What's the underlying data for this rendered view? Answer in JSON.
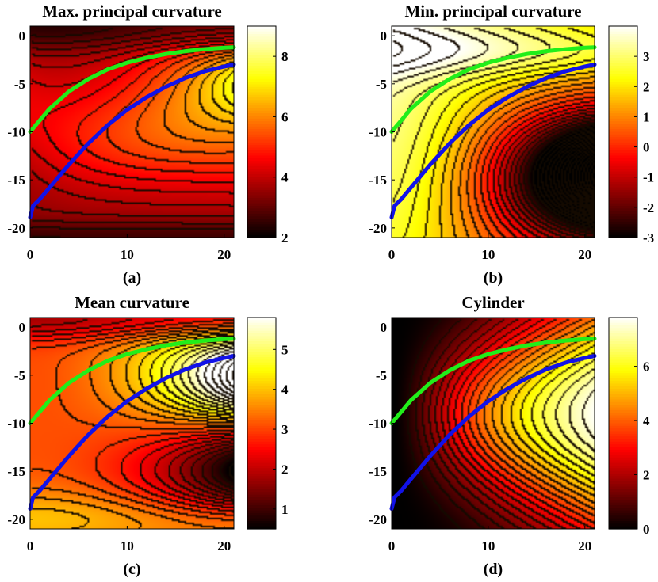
{
  "chart_data": [
    {
      "id": "a",
      "type": "heatmap",
      "title": "Max. principal curvature",
      "caption": "(a)",
      "field": "max",
      "colormap": "hot",
      "xlim": [
        0,
        21
      ],
      "ylim": [
        -21,
        1
      ],
      "xticks": [
        0,
        10,
        20
      ],
      "yticks": [
        0,
        -5,
        -10,
        -15,
        -20
      ],
      "clim": [
        2,
        9
      ],
      "cticks": [
        2,
        4,
        6,
        8
      ],
      "grid": false,
      "curves": [
        {
          "color": "#21ee1a",
          "x": [
            0,
            2,
            4,
            6,
            8,
            10,
            12,
            14,
            16,
            18,
            20,
            21
          ],
          "y": [
            -10,
            -7.6,
            -5.8,
            -4.5,
            -3.5,
            -2.8,
            -2.3,
            -1.9,
            -1.6,
            -1.4,
            -1.25,
            -1.2
          ]
        },
        {
          "color": "#1212e8",
          "x": [
            0,
            0.3,
            1,
            2,
            4,
            6,
            8,
            10,
            12,
            14,
            16,
            18,
            20,
            21
          ],
          "y": [
            -18.9,
            -17.7,
            -17.0,
            -15.8,
            -13.4,
            -11.2,
            -9.3,
            -7.7,
            -6.4,
            -5.3,
            -4.4,
            -3.7,
            -3.2,
            -3.0
          ]
        }
      ]
    },
    {
      "id": "b",
      "type": "heatmap",
      "title": "Min. principal curvature",
      "caption": "(b)",
      "field": "min",
      "colormap": "hot",
      "xlim": [
        0,
        21
      ],
      "ylim": [
        -21,
        1
      ],
      "xticks": [
        0,
        10,
        20
      ],
      "yticks": [
        0,
        -5,
        -10,
        -15,
        -20
      ],
      "clim": [
        -3,
        4
      ],
      "cticks": [
        -3,
        -2,
        -1,
        0,
        1,
        2,
        3
      ],
      "grid": false,
      "curves": [
        {
          "color": "#21ee1a",
          "x": [
            0,
            2,
            4,
            6,
            8,
            10,
            12,
            14,
            16,
            18,
            20,
            21
          ],
          "y": [
            -10,
            -7.6,
            -5.8,
            -4.5,
            -3.5,
            -2.8,
            -2.3,
            -1.9,
            -1.6,
            -1.4,
            -1.25,
            -1.2
          ]
        },
        {
          "color": "#1212e8",
          "x": [
            0,
            0.3,
            1,
            2,
            4,
            6,
            8,
            10,
            12,
            14,
            16,
            18,
            20,
            21
          ],
          "y": [
            -18.9,
            -17.7,
            -17.0,
            -15.8,
            -13.4,
            -11.2,
            -9.3,
            -7.7,
            -6.4,
            -5.3,
            -4.4,
            -3.7,
            -3.2,
            -3.0
          ]
        }
      ]
    },
    {
      "id": "c",
      "type": "heatmap",
      "title": "Mean curvature",
      "caption": "(c)",
      "field": "mean",
      "colormap": "hot",
      "xlim": [
        0,
        21
      ],
      "ylim": [
        -21,
        1
      ],
      "xticks": [
        0,
        10,
        20
      ],
      "yticks": [
        0,
        -5,
        -10,
        -15,
        -20
      ],
      "clim": [
        0.5,
        5.8
      ],
      "cticks": [
        1,
        2,
        3,
        4,
        5
      ],
      "grid": false,
      "curves": [
        {
          "color": "#21ee1a",
          "x": [
            0,
            2,
            4,
            6,
            8,
            10,
            12,
            14,
            16,
            18,
            20,
            21
          ],
          "y": [
            -10,
            -7.6,
            -5.8,
            -4.5,
            -3.5,
            -2.8,
            -2.3,
            -1.9,
            -1.6,
            -1.4,
            -1.25,
            -1.2
          ]
        },
        {
          "color": "#1212e8",
          "x": [
            0,
            0.3,
            1,
            2,
            4,
            6,
            8,
            10,
            12,
            14,
            16,
            18,
            20,
            21
          ],
          "y": [
            -18.9,
            -17.7,
            -17.0,
            -15.8,
            -13.4,
            -11.2,
            -9.3,
            -7.7,
            -6.4,
            -5.3,
            -4.4,
            -3.7,
            -3.2,
            -3.0
          ]
        }
      ]
    },
    {
      "id": "d",
      "type": "heatmap",
      "title": "Cylinder",
      "caption": "(d)",
      "field": "cyl",
      "colormap": "hot",
      "xlim": [
        0,
        21
      ],
      "ylim": [
        -21,
        1
      ],
      "xticks": [
        0,
        10,
        20
      ],
      "yticks": [
        0,
        -5,
        -10,
        -15,
        -20
      ],
      "clim": [
        0,
        7.8
      ],
      "cticks": [
        0,
        2,
        4,
        6
      ],
      "grid": false,
      "curves": [
        {
          "color": "#21ee1a",
          "x": [
            0,
            2,
            4,
            6,
            8,
            10,
            12,
            14,
            16,
            18,
            20,
            21
          ],
          "y": [
            -10,
            -7.6,
            -5.8,
            -4.5,
            -3.5,
            -2.8,
            -2.3,
            -1.9,
            -1.6,
            -1.4,
            -1.25,
            -1.2
          ]
        },
        {
          "color": "#1212e8",
          "x": [
            0,
            0.3,
            1,
            2,
            4,
            6,
            8,
            10,
            12,
            14,
            16,
            18,
            20,
            21
          ],
          "y": [
            -18.9,
            -17.7,
            -17.0,
            -15.8,
            -13.4,
            -11.2,
            -9.3,
            -7.7,
            -6.4,
            -5.3,
            -4.4,
            -3.7,
            -3.2,
            -3.0
          ]
        }
      ]
    }
  ]
}
